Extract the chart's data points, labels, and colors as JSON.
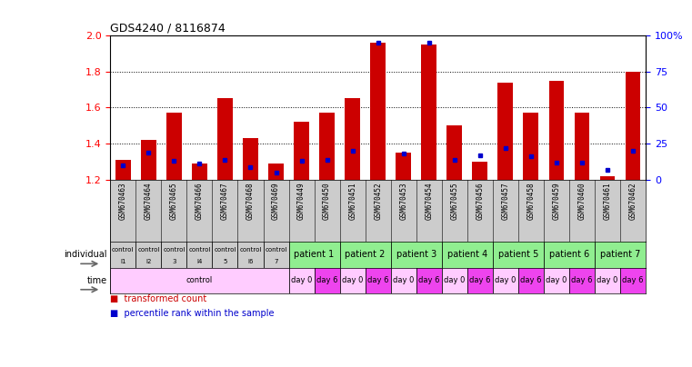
{
  "title": "GDS4240 / 8116874",
  "samples": [
    "GSM670463",
    "GSM670464",
    "GSM670465",
    "GSM670466",
    "GSM670467",
    "GSM670468",
    "GSM670469",
    "GSM670449",
    "GSM670450",
    "GSM670451",
    "GSM670452",
    "GSM670453",
    "GSM670454",
    "GSM670455",
    "GSM670456",
    "GSM670457",
    "GSM670458",
    "GSM670459",
    "GSM670460",
    "GSM670461",
    "GSM670462"
  ],
  "red_values": [
    1.31,
    1.42,
    1.57,
    1.29,
    1.65,
    1.43,
    1.29,
    1.52,
    1.57,
    1.65,
    1.96,
    1.35,
    1.95,
    1.5,
    1.3,
    1.74,
    1.57,
    1.75,
    1.57,
    1.22,
    1.8
  ],
  "blue_percentile": [
    10,
    19,
    13,
    11,
    14,
    9,
    5,
    13,
    14,
    20,
    95,
    18,
    95,
    14,
    17,
    22,
    16,
    12,
    12,
    7,
    20
  ],
  "ylim": [
    1.2,
    2.0
  ],
  "y2lim": [
    0,
    100
  ],
  "yticks": [
    1.2,
    1.4,
    1.6,
    1.8,
    2.0
  ],
  "y2ticks": [
    0,
    25,
    50,
    75,
    100
  ],
  "bg_color": "#ffffff",
  "bar_color": "#cc0000",
  "blue_color": "#0000cc",
  "indiv_bg_control": "#cccccc",
  "indiv_bg_patient": "#90ee90",
  "time_bg_light": "#ffccff",
  "time_bg_dark": "#ee44ee",
  "individual_spans": [
    {
      "label": "control\nl1",
      "start": 0,
      "end": 1,
      "is_patient": false
    },
    {
      "label": "control\nl2",
      "start": 1,
      "end": 2,
      "is_patient": false
    },
    {
      "label": "control\n3",
      "start": 2,
      "end": 3,
      "is_patient": false
    },
    {
      "label": "control\nl4",
      "start": 3,
      "end": 4,
      "is_patient": false
    },
    {
      "label": "control\n5",
      "start": 4,
      "end": 5,
      "is_patient": false
    },
    {
      "label": "control\nl6",
      "start": 5,
      "end": 6,
      "is_patient": false
    },
    {
      "label": "control\n7",
      "start": 6,
      "end": 7,
      "is_patient": false
    },
    {
      "label": "patient 1",
      "start": 7,
      "end": 9,
      "is_patient": true
    },
    {
      "label": "patient 2",
      "start": 9,
      "end": 11,
      "is_patient": true
    },
    {
      "label": "patient 3",
      "start": 11,
      "end": 13,
      "is_patient": true
    },
    {
      "label": "patient 4",
      "start": 13,
      "end": 15,
      "is_patient": true
    },
    {
      "label": "patient 5",
      "start": 15,
      "end": 17,
      "is_patient": true
    },
    {
      "label": "patient 6",
      "start": 17,
      "end": 19,
      "is_patient": true
    },
    {
      "label": "patient 7",
      "start": 19,
      "end": 21,
      "is_patient": true
    }
  ],
  "time_spans": [
    {
      "label": "control",
      "start": 0,
      "end": 7,
      "dark": false
    },
    {
      "label": "day 0",
      "start": 7,
      "end": 8,
      "dark": false
    },
    {
      "label": "day 6",
      "start": 8,
      "end": 9,
      "dark": true
    },
    {
      "label": "day 0",
      "start": 9,
      "end": 10,
      "dark": false
    },
    {
      "label": "day 6",
      "start": 10,
      "end": 11,
      "dark": true
    },
    {
      "label": "day 0",
      "start": 11,
      "end": 12,
      "dark": false
    },
    {
      "label": "day 6",
      "start": 12,
      "end": 13,
      "dark": true
    },
    {
      "label": "day 0",
      "start": 13,
      "end": 14,
      "dark": false
    },
    {
      "label": "day 6",
      "start": 14,
      "end": 15,
      "dark": true
    },
    {
      "label": "day 0",
      "start": 15,
      "end": 16,
      "dark": false
    },
    {
      "label": "day 6",
      "start": 16,
      "end": 17,
      "dark": true
    },
    {
      "label": "day 0",
      "start": 17,
      "end": 18,
      "dark": false
    },
    {
      "label": "day 6",
      "start": 18,
      "end": 19,
      "dark": true
    },
    {
      "label": "day 0",
      "start": 19,
      "end": 20,
      "dark": false
    },
    {
      "label": "day 6",
      "start": 20,
      "end": 21,
      "dark": true
    }
  ],
  "n_samples": 21
}
